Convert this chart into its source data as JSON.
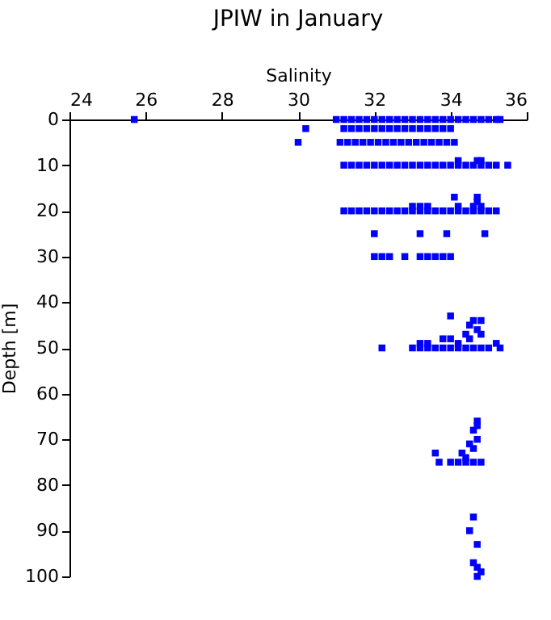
{
  "chart_data": {
    "type": "scatter",
    "title": "JPIW in January",
    "xlabel": "Salinity",
    "ylabel": "Depth [m]",
    "xlim": [
      24,
      36
    ],
    "xticks": [
      24,
      26,
      28,
      30,
      32,
      34,
      36
    ],
    "ylim": [
      100,
      0
    ],
    "yticks": [
      0,
      10,
      20,
      30,
      40,
      50,
      60,
      70,
      80,
      90,
      100
    ],
    "grid": false,
    "legend": false,
    "marker": "square",
    "series": [
      {
        "color": "#0000ff",
        "x": [
          25.7,
          31.0,
          31.2,
          31.4,
          31.6,
          31.8,
          32.0,
          32.2,
          32.4,
          32.6,
          32.8,
          33.0,
          33.2,
          33.4,
          33.6,
          33.8,
          34.0,
          34.2,
          34.4,
          34.6,
          34.8,
          35.0,
          35.2,
          35.3
        ],
        "values": [
          0,
          0,
          0,
          0,
          0,
          0,
          0,
          0,
          0,
          0,
          0,
          0,
          0,
          0,
          0,
          0,
          0,
          0,
          0,
          0,
          0,
          0,
          0,
          0
        ]
      },
      {
        "color": "#0000ff",
        "x": [
          30.2,
          31.2,
          31.4,
          31.6,
          31.8,
          32.0,
          32.2,
          32.4,
          32.6,
          32.8,
          33.0,
          33.2,
          33.4,
          33.6,
          33.8,
          34.0
        ],
        "values": [
          2,
          2,
          2,
          2,
          2,
          2,
          2,
          2,
          2,
          2,
          2,
          2,
          2,
          2,
          2,
          2
        ]
      },
      {
        "color": "#0000ff",
        "x": [
          30.0,
          31.1,
          31.3,
          31.5,
          31.7,
          31.9,
          32.1,
          32.3,
          32.5,
          32.7,
          32.9,
          33.1,
          33.3,
          33.5,
          33.7,
          33.9,
          34.1
        ],
        "values": [
          5,
          5,
          5,
          5,
          5,
          5,
          5,
          5,
          5,
          5,
          5,
          5,
          5,
          5,
          5,
          5,
          5
        ]
      },
      {
        "color": "#0000ff",
        "x": [
          31.2,
          31.4,
          31.6,
          31.8,
          32.0,
          32.2,
          32.4,
          32.6,
          32.8,
          33.0,
          33.2,
          33.4,
          33.6,
          33.8,
          34.0,
          34.2,
          34.4,
          34.6,
          34.8,
          35.0,
          35.2,
          35.5,
          34.2,
          34.7,
          34.8
        ],
        "values": [
          10,
          10,
          10,
          10,
          10,
          10,
          10,
          10,
          10,
          10,
          10,
          10,
          10,
          10,
          10,
          10,
          10,
          10,
          10,
          10,
          10,
          10,
          9,
          9,
          9
        ]
      },
      {
        "color": "#0000ff",
        "x": [
          31.2,
          31.4,
          31.6,
          31.8,
          32.0,
          32.2,
          32.4,
          32.6,
          32.8,
          33.0,
          33.2,
          33.4,
          33.6,
          33.8,
          34.0,
          34.2,
          34.4,
          34.6,
          34.8,
          35.0,
          35.2,
          33.0,
          33.2,
          33.4,
          34.2,
          34.6,
          34.8,
          34.1,
          34.7,
          34.7
        ],
        "values": [
          20,
          20,
          20,
          20,
          20,
          20,
          20,
          20,
          20,
          20,
          20,
          20,
          20,
          20,
          20,
          20,
          20,
          20,
          20,
          20,
          20,
          19,
          19,
          19,
          19,
          19,
          19,
          17,
          17,
          18
        ]
      },
      {
        "color": "#0000ff",
        "x": [
          32.0,
          33.2,
          33.9,
          34.9
        ],
        "values": [
          25,
          25,
          25,
          25
        ]
      },
      {
        "color": "#0000ff",
        "x": [
          32.0,
          32.2,
          32.4,
          32.8,
          33.2,
          33.4,
          33.6,
          33.8,
          34.0
        ],
        "values": [
          30,
          30,
          30,
          30,
          30,
          30,
          30,
          30,
          30
        ]
      },
      {
        "color": "#0000ff",
        "x": [
          32.2,
          33.0,
          33.2,
          33.4,
          33.6,
          33.8,
          34.0,
          34.2,
          34.4,
          34.6,
          34.8,
          35.0,
          35.3,
          33.2,
          33.4,
          33.8,
          34.0,
          34.2,
          34.4,
          34.5,
          34.6,
          34.7,
          34.8,
          34.0,
          34.8,
          34.5,
          35.2
        ],
        "values": [
          50,
          50,
          50,
          50,
          50,
          50,
          50,
          50,
          50,
          50,
          50,
          50,
          50,
          49,
          49,
          48,
          48,
          49,
          47,
          45,
          44,
          46,
          44,
          43,
          47,
          48,
          49
        ]
      },
      {
        "color": "#0000ff",
        "x": [
          33.6,
          33.7,
          34.0,
          34.2,
          34.4,
          34.6,
          34.8,
          34.4,
          34.6,
          34.3,
          34.7,
          34.6,
          34.7,
          34.7,
          34.5
        ],
        "values": [
          73,
          75,
          75,
          75,
          75,
          75,
          75,
          74,
          72,
          73,
          70,
          68,
          66,
          67,
          71
        ]
      },
      {
        "color": "#0000ff",
        "x": [
          34.6,
          34.5,
          34.7,
          34.6,
          34.7,
          34.8,
          34.7
        ],
        "values": [
          87,
          90,
          93,
          97,
          98,
          99,
          100
        ]
      }
    ]
  }
}
